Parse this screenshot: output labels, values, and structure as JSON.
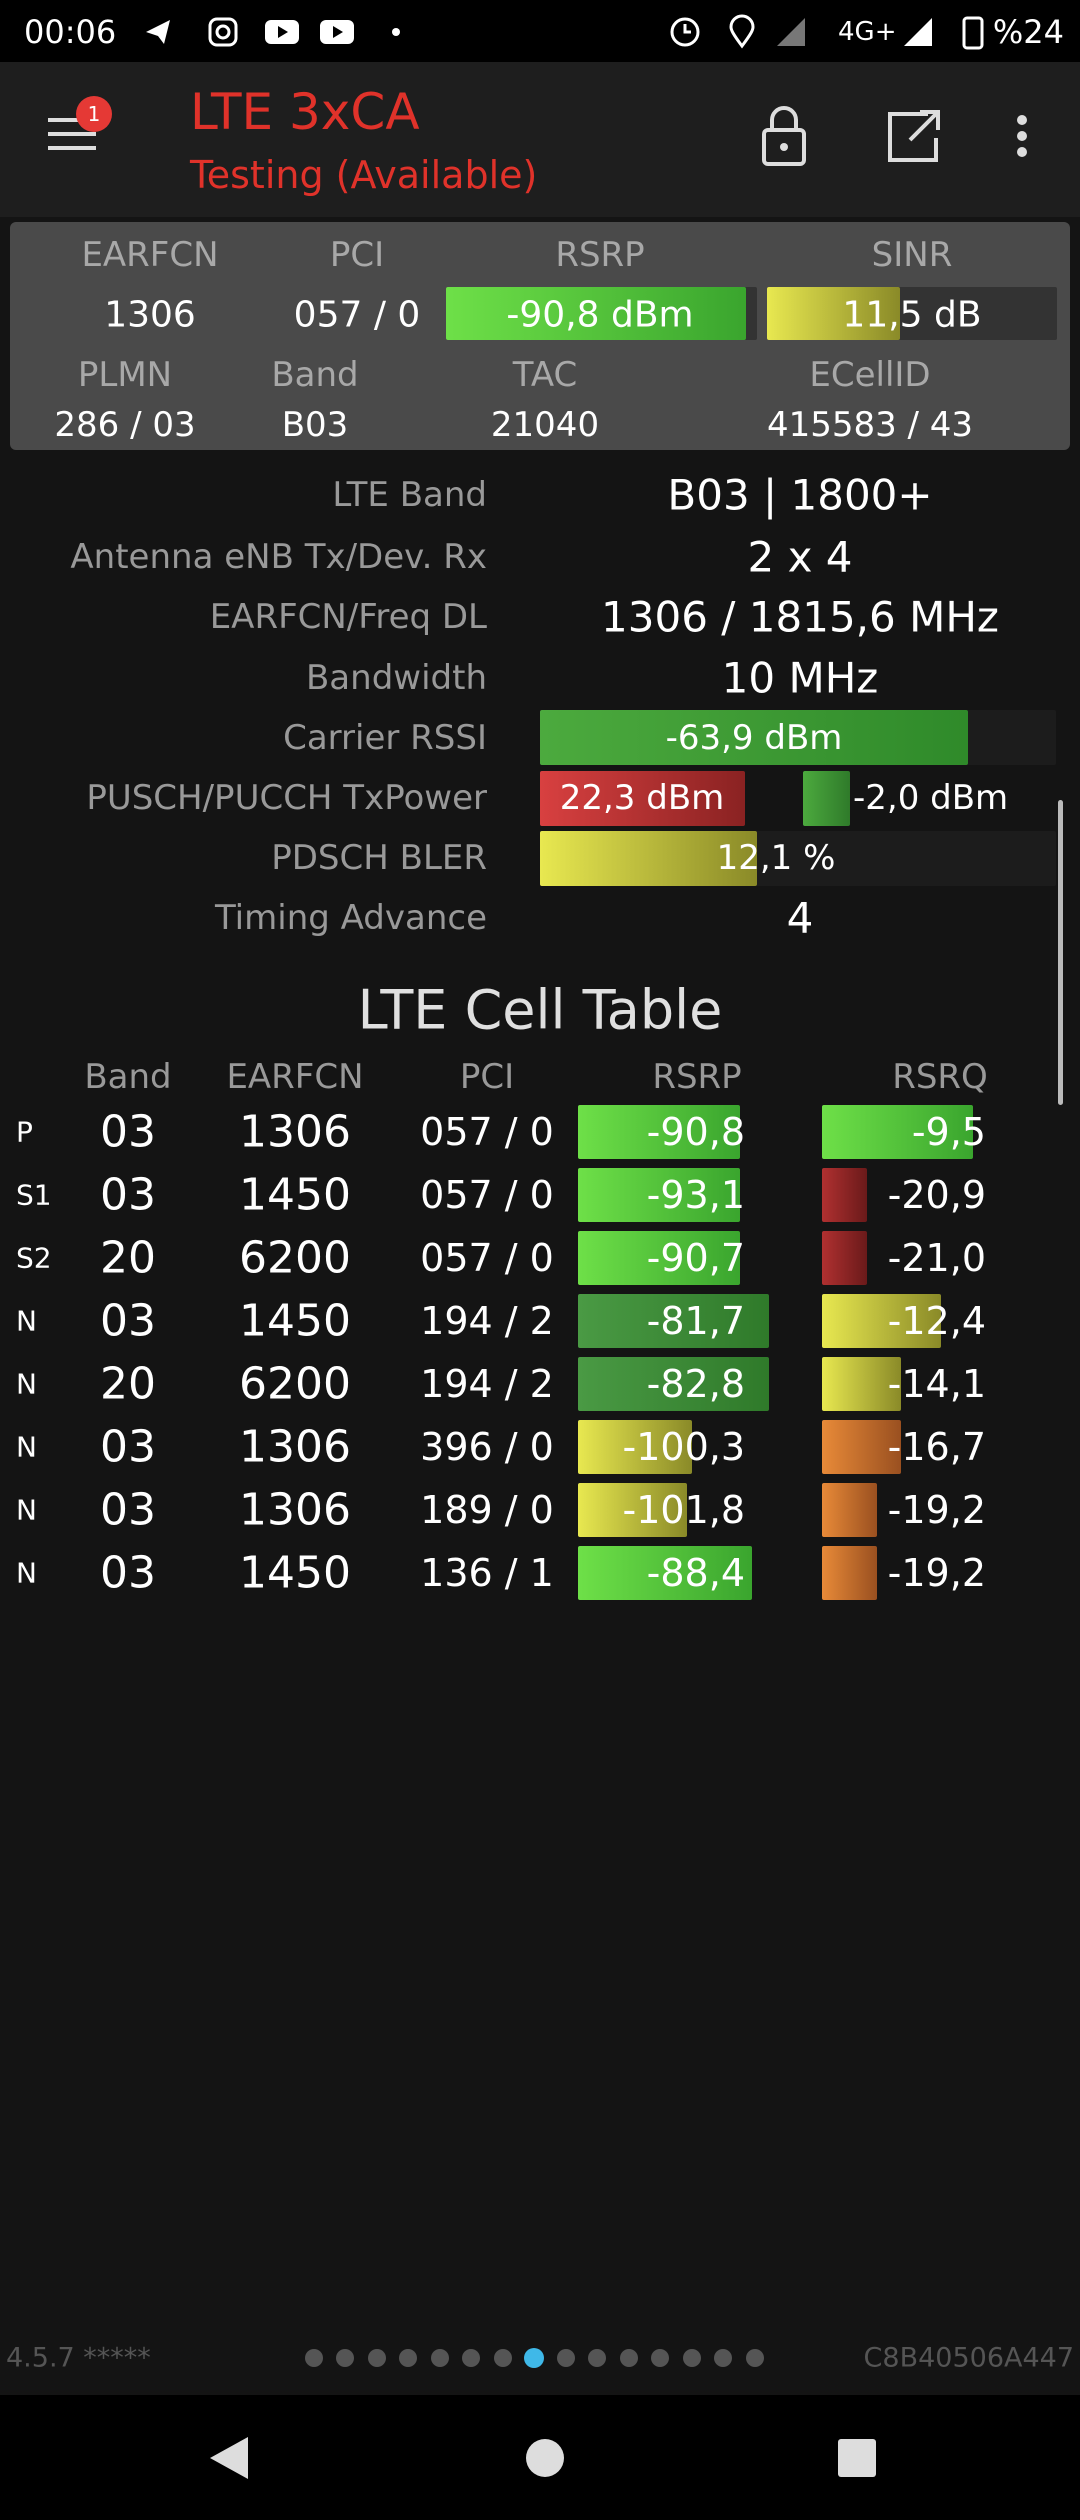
{
  "status_bar": {
    "time": "00:06",
    "network": "4G+",
    "battery": "%24"
  },
  "header": {
    "title": "LTE 3xCA",
    "subtitle": "Testing (Available)",
    "badge": "1"
  },
  "summary": {
    "headers_1": [
      "EARFCN",
      "PCI",
      "RSRP",
      "SINR"
    ],
    "values_1": [
      "1306",
      "057 / 0",
      "-90,8 dBm",
      "11,5 dB"
    ],
    "headers_2": [
      "PLMN",
      "Band",
      "TAC",
      "ECellID"
    ],
    "values_2": [
      "286 / 03",
      "B03",
      "21040",
      "415583 / 43"
    ]
  },
  "details": [
    {
      "label": "LTE Band",
      "value": "B03 | 1800+"
    },
    {
      "label": "Antenna eNB Tx/Dev. Rx",
      "value": "2 x 4"
    },
    {
      "label": "EARFCN/Freq DL",
      "value": "1306 / 1815,6 MHz"
    },
    {
      "label": "Bandwidth",
      "value": "10 MHz"
    },
    {
      "label": "Carrier RSSI",
      "value": "-63,9 dBm"
    },
    {
      "label": "PUSCH/PUCCH TxPower",
      "value": "22,3 dBm",
      "value_2": "-2,0 dBm"
    },
    {
      "label": "PDSCH BLER",
      "value": "12,1 %"
    },
    {
      "label": "Timing Advance",
      "value": "4"
    }
  ],
  "cell_table": {
    "title": "LTE Cell Table",
    "columns": [
      "Band",
      "EARFCN",
      "PCI",
      "RSRP",
      "RSRQ"
    ],
    "rows": [
      [
        "P",
        "03",
        "1306",
        "057 / 0",
        "-90,8",
        "-9,5"
      ],
      [
        "S1",
        "03",
        "1450",
        "057 / 0",
        "-93,1",
        "-20,9"
      ],
      [
        "S2",
        "20",
        "6200",
        "057 / 0",
        "-90,7",
        "-21,0"
      ],
      [
        "N",
        "03",
        "1450",
        "194 / 2",
        "-81,7",
        "-12,4"
      ],
      [
        "N",
        "20",
        "6200",
        "194 / 2",
        "-82,8",
        "-14,1"
      ],
      [
        "N",
        "03",
        "1306",
        "396 / 0",
        "-100,3",
        "-16,7"
      ],
      [
        "N",
        "03",
        "1306",
        "189 / 0",
        "-101,8",
        "-19,2"
      ],
      [
        "N",
        "03",
        "1450",
        "136 / 1",
        "-88,4",
        "-19,2"
      ]
    ]
  },
  "footer": {
    "version": "4.5.7 *****",
    "device_id": "C8B40506A447"
  }
}
